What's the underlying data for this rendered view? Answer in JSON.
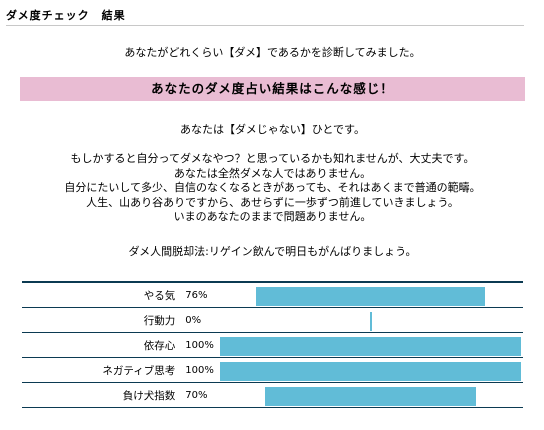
{
  "header": {
    "title": "ダメ度チェック　結果"
  },
  "intro": "あなたがどれくらい【ダメ】であるかを診断してみました。",
  "banner": "あなたのダメ度占い結果はこんな感じ！",
  "result": "あなたは【ダメじゃない】ひとです。",
  "body_lines": [
    "もしかすると自分ってダメなやつ？と思っているかも知れませんが、大丈夫です。",
    "あなたは全然ダメな人ではありません。",
    "自分にたいして多少、自信のなくなるときがあっても、それはあくまで普通の範疇。",
    "人生、山あり谷ありですから、あせらずに一歩ずつ前進していきましょう。",
    "いまのあなたのままで問題ありません。"
  ],
  "advice": "ダメ人間脱却法:リゲイン飲んで明日もがんばりましょう。",
  "scores": [
    {
      "label": "やる気",
      "percent_text": "76%",
      "value": 76
    },
    {
      "label": "行動力",
      "percent_text": "0%",
      "value": 0
    },
    {
      "label": "依存心",
      "percent_text": "100%",
      "value": 100
    },
    {
      "label": "ネガティブ思考",
      "percent_text": "100%",
      "value": 100
    },
    {
      "label": "負け犬指数",
      "percent_text": "70%",
      "value": 70
    }
  ],
  "colors": {
    "bar": "#61bcd7",
    "banner": "#e9bcd3",
    "rule": "#0b3a52"
  }
}
